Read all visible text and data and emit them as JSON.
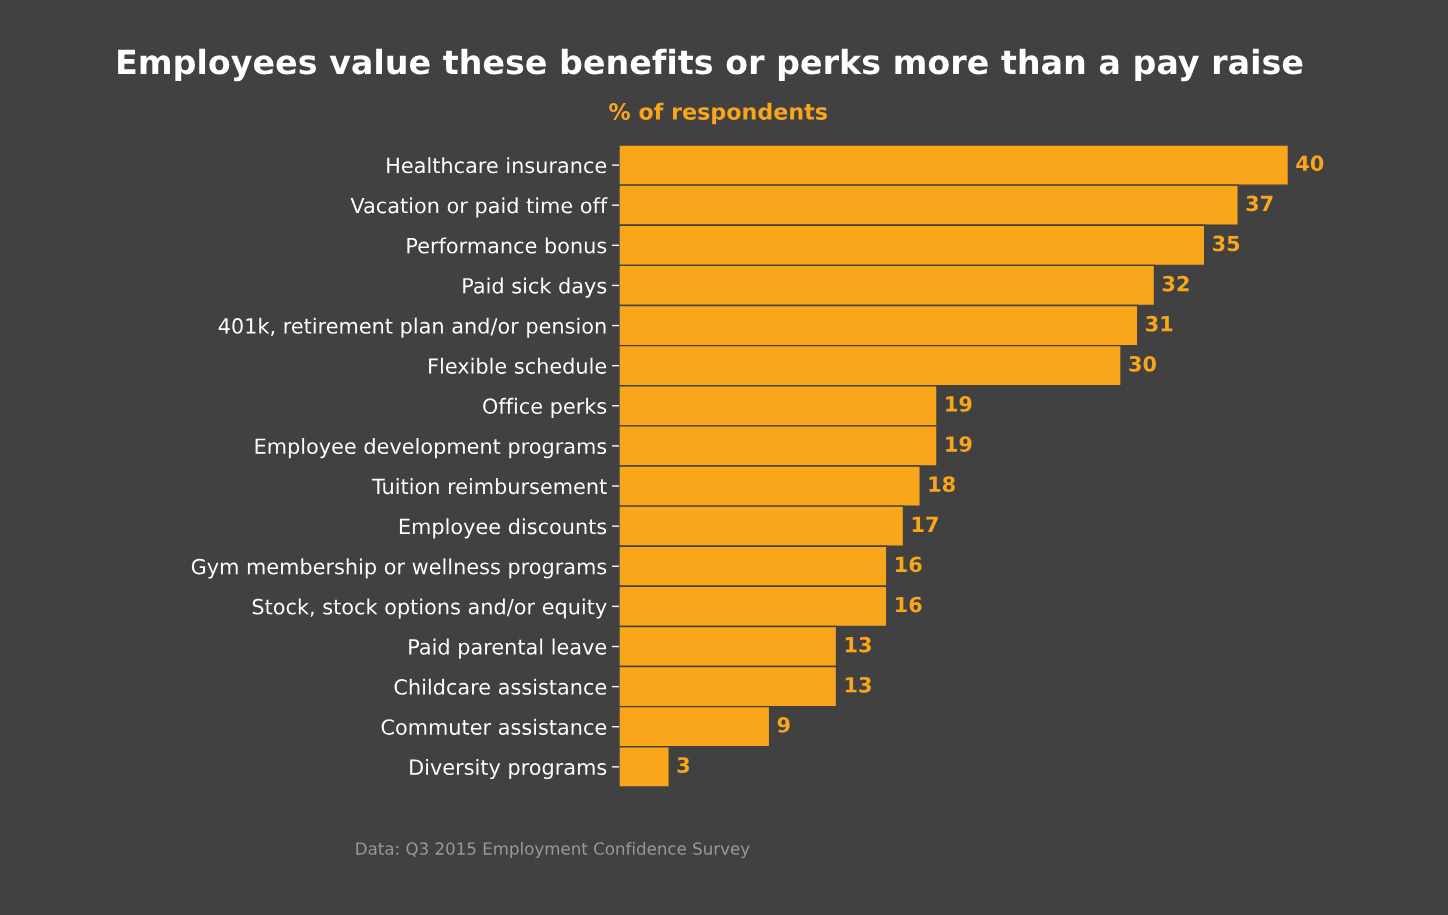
{
  "chart_data": {
    "type": "bar",
    "orientation": "horizontal",
    "title": "Employees value these benefits or perks more than a pay raise",
    "subtitle": "% of respondents",
    "categories": [
      "Healthcare insurance",
      "Vacation or paid time off",
      "Performance bonus",
      "Paid sick days",
      "401k, retirement plan and/or pension",
      "Flexible schedule",
      "Office perks",
      "Employee development programs",
      "Tuition reimbursement",
      "Employee discounts",
      "Gym membership or wellness programs",
      "Stock, stock options and/or equity",
      "Paid parental leave",
      "Childcare assistance",
      "Commuter assistance",
      "Diversity programs"
    ],
    "values": [
      40,
      37,
      35,
      32,
      31,
      30,
      19,
      19,
      18,
      17,
      16,
      16,
      13,
      13,
      9,
      3
    ],
    "color": "#f9a61a",
    "data_labels": true,
    "grid": false,
    "legend": false,
    "tick_labels": "y",
    "annotations": [
      "Data: Q3 2015 Employment Confidence Survey"
    ]
  }
}
